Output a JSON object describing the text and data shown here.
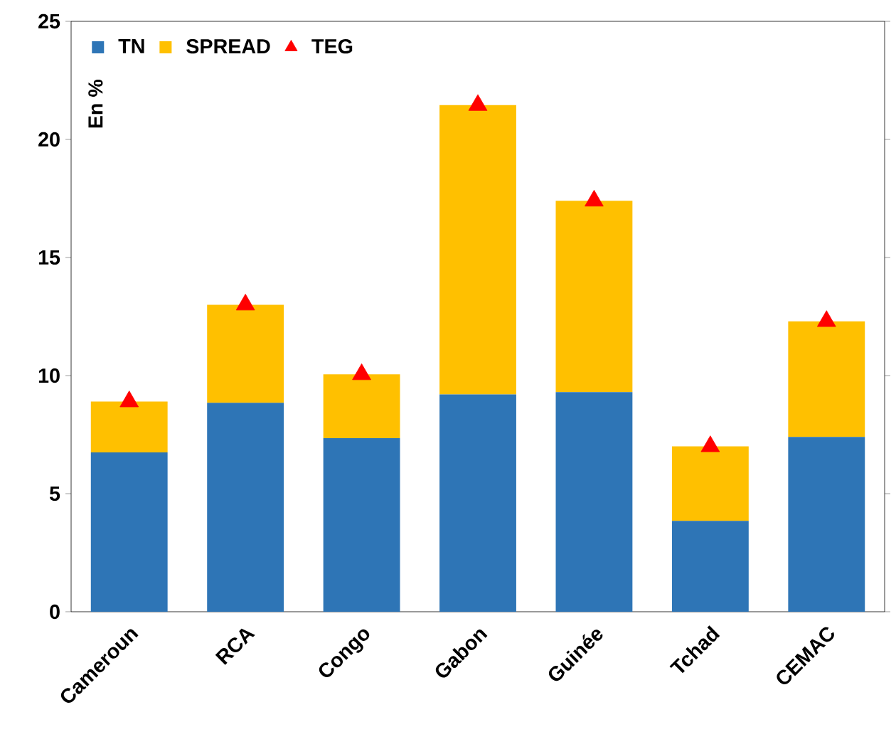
{
  "chart_data": {
    "type": "bar",
    "stacked": true,
    "ylabel": "En %",
    "categories": [
      "Cameroun",
      "RCA",
      "Congo",
      "Gabon",
      "Guinée",
      "Tchad",
      "CEMAC"
    ],
    "series": [
      {
        "name": "TN",
        "color": "#2e75b6",
        "values": [
          6.75,
          8.85,
          7.35,
          9.2,
          9.3,
          3.85,
          7.4
        ]
      },
      {
        "name": "SPREAD",
        "color": "#ffc000",
        "values": [
          2.15,
          4.15,
          2.7,
          12.25,
          8.1,
          3.15,
          4.9
        ]
      },
      {
        "name": "TEG",
        "type": "scatter",
        "marker": "triangle",
        "color": "#ff0000",
        "x": [
          "Cameroun",
          "RCA",
          "Congo",
          "Gabon",
          "Guinée",
          "Tchad",
          "CEMAC"
        ],
        "values": [
          8.9,
          13.0,
          10.05,
          21.45,
          17.4,
          7.0,
          12.3
        ]
      }
    ],
    "ylim": [
      0,
      25
    ],
    "yticks": [
      0,
      5,
      10,
      15,
      20,
      25
    ],
    "legend": "top left",
    "grid": false
  }
}
